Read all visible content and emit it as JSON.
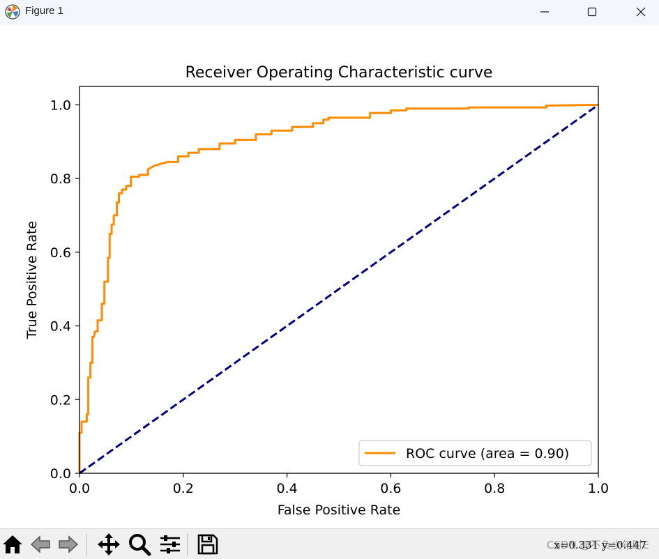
{
  "window": {
    "title": "Figure 1",
    "icon": "matplotlib-icon",
    "controls": [
      "minimize-icon",
      "maximize-icon",
      "close-icon"
    ]
  },
  "toolbar": {
    "buttons": [
      "home-icon",
      "back-arrow-icon",
      "forward-arrow-icon",
      "pan-icon",
      "zoom-icon",
      "subplots-config-icon",
      "save-icon"
    ],
    "coordinates": "x=0.331 y=0.447",
    "watermark": "CSDN @不负少年时E"
  },
  "chart_data": {
    "type": "line",
    "title": "Receiver Operating Characteristic curve",
    "xlabel": "False Positive Rate",
    "ylabel": "True Positive Rate",
    "xlim": [
      0.0,
      1.0
    ],
    "ylim": [
      0.0,
      1.05
    ],
    "xticks": [
      "0.0",
      "0.2",
      "0.4",
      "0.6",
      "0.8",
      "1.0"
    ],
    "yticks": [
      "0.0",
      "0.2",
      "0.4",
      "0.6",
      "0.8",
      "1.0"
    ],
    "grid": false,
    "legend_position": "lower right",
    "series": [
      {
        "name": "ROC curve (area = 0.90)",
        "color": "#ff8c00",
        "style": "solid",
        "x": [
          0.0,
          0.0,
          0.004,
          0.004,
          0.014,
          0.014,
          0.017,
          0.017,
          0.021,
          0.021,
          0.025,
          0.025,
          0.028,
          0.03,
          0.035,
          0.035,
          0.043,
          0.043,
          0.048,
          0.048,
          0.055,
          0.055,
          0.058,
          0.058,
          0.062,
          0.062,
          0.066,
          0.066,
          0.072,
          0.072,
          0.076,
          0.076,
          0.082,
          0.082,
          0.09,
          0.09,
          0.099,
          0.099,
          0.115,
          0.115,
          0.132,
          0.132,
          0.145,
          0.17,
          0.19,
          0.19,
          0.21,
          0.21,
          0.23,
          0.23,
          0.27,
          0.27,
          0.3,
          0.3,
          0.34,
          0.34,
          0.37,
          0.37,
          0.41,
          0.41,
          0.45,
          0.45,
          0.47,
          0.47,
          0.48,
          0.48,
          0.56,
          0.56,
          0.6,
          0.6,
          0.63,
          0.63,
          0.75,
          0.75,
          0.9,
          0.9,
          1.0
        ],
        "y": [
          0.0,
          0.11,
          0.11,
          0.14,
          0.14,
          0.16,
          0.16,
          0.26,
          0.26,
          0.3,
          0.3,
          0.37,
          0.37,
          0.385,
          0.385,
          0.415,
          0.415,
          0.46,
          0.46,
          0.52,
          0.52,
          0.585,
          0.585,
          0.65,
          0.65,
          0.675,
          0.675,
          0.7,
          0.7,
          0.735,
          0.735,
          0.76,
          0.76,
          0.77,
          0.77,
          0.78,
          0.78,
          0.805,
          0.805,
          0.81,
          0.81,
          0.825,
          0.835,
          0.845,
          0.845,
          0.86,
          0.86,
          0.87,
          0.87,
          0.88,
          0.88,
          0.895,
          0.895,
          0.905,
          0.905,
          0.92,
          0.92,
          0.93,
          0.93,
          0.94,
          0.94,
          0.95,
          0.95,
          0.96,
          0.96,
          0.965,
          0.965,
          0.978,
          0.978,
          0.985,
          0.985,
          0.99,
          0.99,
          0.993,
          0.993,
          0.998,
          1.0
        ]
      },
      {
        "name": "",
        "color": "#000080",
        "style": "dashed",
        "x": [
          0.0,
          1.0
        ],
        "y": [
          0.0,
          1.0
        ]
      }
    ]
  }
}
